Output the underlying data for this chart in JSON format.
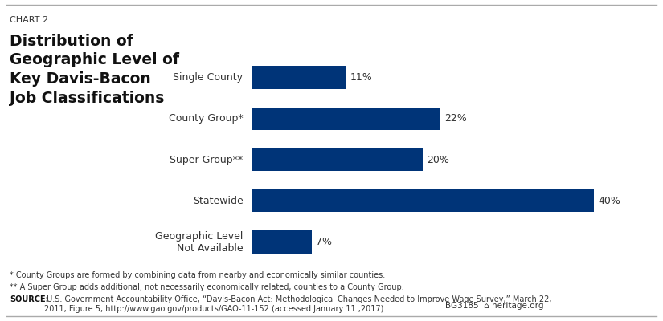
{
  "chart_label": "CHART 2",
  "title": "Distribution of\nGeographic Level of\nKey Davis-Bacon\nJob Classifications",
  "categories": [
    "Single County",
    "County Group*",
    "Super Group**",
    "Statewide",
    "Geographic Level\nNot Available"
  ],
  "values": [
    11,
    22,
    20,
    40,
    7
  ],
  "bar_color": "#003478",
  "bar_height": 0.55,
  "footnote1": "* County Groups are formed by combining data from nearby and economically similar counties.",
  "footnote2": "** A Super Group adds additional, not necessarily economically related, counties to a County Group.",
  "source_bold": "SOURCE:",
  "source_text": " U.S. Government Accountability Office, “Davis-Bacon Act: Methodological Changes Needed to Improve Wage Survey,” March 22,\n2011, Figure 5, http://www.gao.gov/products/GAO-11-152 (accessed January 11 ,2017).",
  "bg_label": "BG3185",
  "heritage_label": "heritage.org",
  "background_color": "#ffffff",
  "text_color": "#333333",
  "xlim": [
    0,
    45
  ]
}
